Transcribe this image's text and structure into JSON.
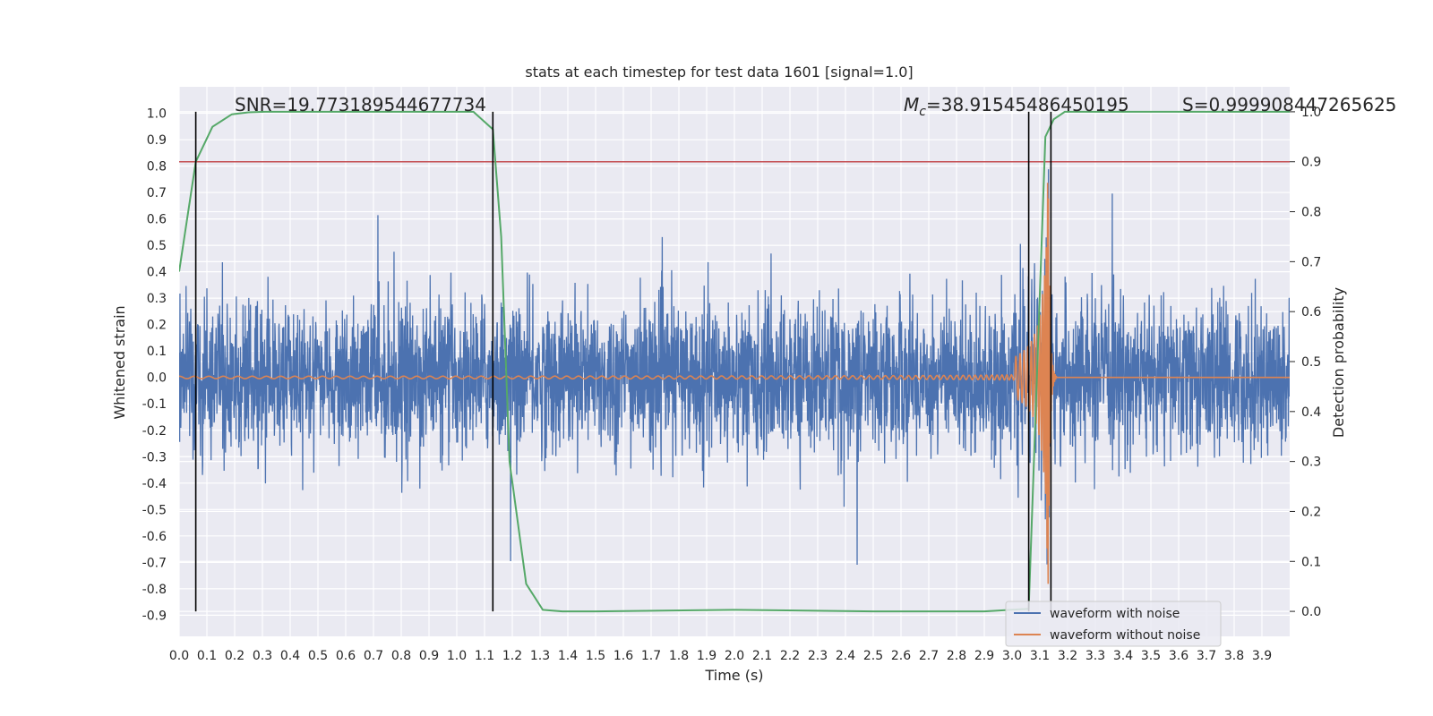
{
  "chart_data": {
    "type": "line",
    "title": "stats at each timestep for test data 1601 [signal=1.0]",
    "xlabel": "Time (s)",
    "ylabel": "Whitened strain",
    "y2label": "Detection probability",
    "xlim": [
      0.0,
      4.0
    ],
    "ylim": [
      -0.98,
      1.1
    ],
    "y2lim": [
      -0.05,
      1.05
    ],
    "x_ticks": [
      "0.0",
      "0.1",
      "0.2",
      "0.3",
      "0.4",
      "0.5",
      "0.6",
      "0.7",
      "0.8",
      "0.9",
      "1.0",
      "1.1",
      "1.2",
      "1.3",
      "1.4",
      "1.5",
      "1.6",
      "1.7",
      "1.8",
      "1.9",
      "2.0",
      "2.1",
      "2.2",
      "2.3",
      "2.4",
      "2.5",
      "2.6",
      "2.7",
      "2.8",
      "2.9",
      "3.0",
      "3.1",
      "3.2",
      "3.3",
      "3.4",
      "3.5",
      "3.6",
      "3.7",
      "3.8",
      "3.9"
    ],
    "y_ticks": [
      "1.0",
      "0.9",
      "0.8",
      "0.7",
      "0.6",
      "0.5",
      "0.4",
      "0.3",
      "0.2",
      "0.1",
      "0.0",
      "-0.1",
      "-0.2",
      "-0.3",
      "-0.4",
      "-0.5",
      "-0.6",
      "-0.7",
      "-0.8",
      "-0.9"
    ],
    "y2_ticks": [
      "1.0",
      "0.9",
      "0.8",
      "0.7",
      "0.6",
      "0.5",
      "0.4",
      "0.3",
      "0.2",
      "0.1",
      "0.0"
    ],
    "grid": true,
    "legend_position": "bottom-right",
    "annotations": {
      "snr": "SNR=19.773189544677734",
      "mc_symbol": "M",
      "mc_sub": "c",
      "mc_value": "=38.91545486450195",
      "s": "S=0.999908447265625"
    },
    "threshold_probability": 0.9,
    "vertical_markers_x": [
      0.06,
      1.13,
      3.06,
      3.14
    ],
    "detection_probability": {
      "x": [
        0.0,
        0.06,
        0.12,
        0.19,
        0.25,
        0.31,
        0.5,
        0.75,
        1.0,
        1.06,
        1.13,
        1.16,
        1.19,
        1.25,
        1.31,
        1.38,
        1.5,
        2.0,
        2.5,
        2.9,
        3.06,
        3.12,
        3.15,
        3.19,
        3.25,
        3.5,
        4.0
      ],
      "y": [
        0.68,
        0.9,
        0.97,
        0.995,
        0.999,
        1.0,
        1.0,
        1.0,
        1.0,
        1.0,
        0.965,
        0.75,
        0.3,
        0.055,
        0.003,
        0.0,
        0.0,
        0.003,
        0.0,
        0.0,
        0.005,
        0.95,
        0.985,
        1.0,
        1.0,
        1.0,
        1.0
      ]
    },
    "series": [
      {
        "name": "waveform with noise",
        "color": "#4c72b0",
        "envelope_sigma": 0.14
      },
      {
        "name": "waveform without noise",
        "color": "#dd8452",
        "merger_time": 3.13,
        "peak_amplitude": 0.8
      }
    ],
    "colors": {
      "background": "#eaeaf2",
      "grid": "#ffffff",
      "noise": "#4c72b0",
      "clean": "#dd8452",
      "probability": "#55a868",
      "threshold": "#c44e52",
      "marker": "#000000"
    }
  }
}
